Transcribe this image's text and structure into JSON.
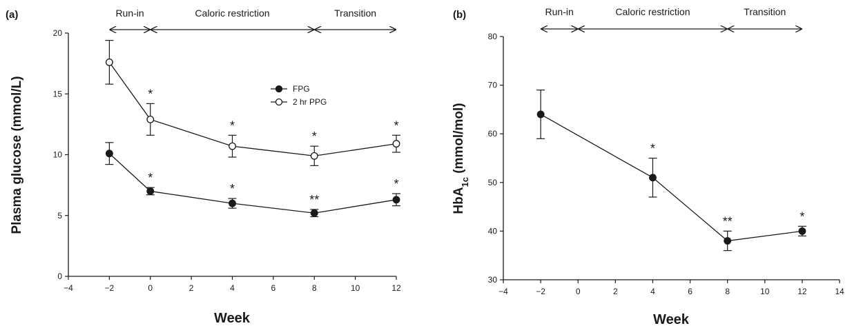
{
  "chart_data": [
    {
      "panel": "(a)",
      "type": "line",
      "xlabel": "Week",
      "ylabel": "Plasma glucose (mmol/L)",
      "xlim": [
        -4,
        12
      ],
      "ylim": [
        0,
        20
      ],
      "xticks": [
        -4,
        -2,
        0,
        2,
        4,
        6,
        8,
        10,
        12
      ],
      "yticks": [
        0,
        5,
        10,
        15,
        20
      ],
      "legend_position": "center",
      "phases": [
        {
          "label": "Run-in",
          "from": -2,
          "to": 0
        },
        {
          "label": "Caloric restriction",
          "from": 0,
          "to": 8
        },
        {
          "label": "Transition",
          "from": 8,
          "to": 12
        }
      ],
      "series": [
        {
          "name": "FPG",
          "marker": "filled",
          "x": [
            -2,
            0,
            4,
            8,
            12
          ],
          "y": [
            10.1,
            7.0,
            6.0,
            5.2,
            6.3
          ],
          "err": [
            0.9,
            0.3,
            0.4,
            0.3,
            0.5
          ],
          "sig": [
            "",
            "*",
            "*",
            "**",
            "*"
          ]
        },
        {
          "name": "2 hr PPG",
          "marker": "open",
          "x": [
            -2,
            0,
            4,
            8,
            12
          ],
          "y": [
            17.6,
            12.9,
            10.7,
            9.9,
            10.9
          ],
          "err": [
            1.8,
            1.3,
            0.9,
            0.8,
            0.7
          ],
          "sig": [
            "",
            "*",
            "*",
            "*",
            "*"
          ]
        }
      ]
    },
    {
      "panel": "(b)",
      "type": "line",
      "xlabel": "Week",
      "ylabel_main": "HbA",
      "ylabel_sub": "1c",
      "ylabel_rest": " (mmol/mol)",
      "xlim": [
        -4,
        14
      ],
      "ylim": [
        30,
        80
      ],
      "xticks": [
        -4,
        -2,
        0,
        2,
        4,
        6,
        8,
        10,
        12,
        14
      ],
      "yticks": [
        30,
        40,
        50,
        60,
        70,
        80
      ],
      "phases": [
        {
          "label": "Run-in",
          "from": -2,
          "to": 0
        },
        {
          "label": "Caloric restriction",
          "from": 0,
          "to": 8
        },
        {
          "label": "Transition",
          "from": 8,
          "to": 12
        }
      ],
      "series": [
        {
          "marker": "filled",
          "x": [
            -2,
            4,
            8,
            12
          ],
          "y": [
            64,
            51,
            38,
            40
          ],
          "err": [
            5,
            4,
            2,
            1
          ],
          "sig": [
            "",
            "*",
            "**",
            "*"
          ]
        }
      ]
    }
  ]
}
